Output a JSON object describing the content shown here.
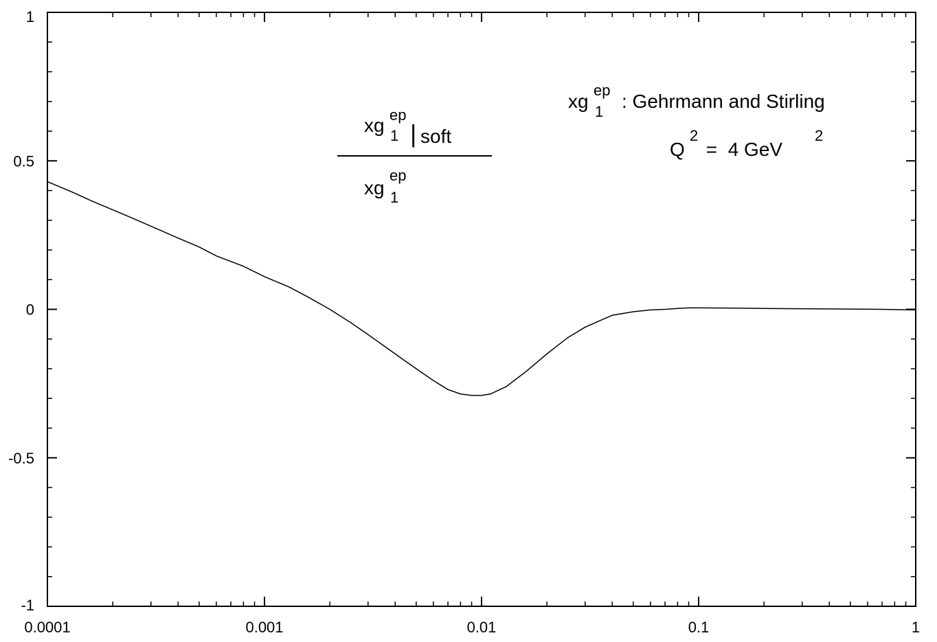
{
  "chart_data": {
    "type": "line",
    "xscale": "log",
    "xlim": [
      0.0001,
      1
    ],
    "ylim": [
      -1,
      1
    ],
    "xticks": [
      {
        "value": 0.0001,
        "label": "0.0001"
      },
      {
        "value": 0.001,
        "label": "0.001"
      },
      {
        "value": 0.01,
        "label": "0.01"
      },
      {
        "value": 0.1,
        "label": "0.1"
      },
      {
        "value": 1,
        "label": "1"
      }
    ],
    "yticks": [
      {
        "value": 1,
        "label": "1"
      },
      {
        "value": 0.5,
        "label": "0.5"
      },
      {
        "value": 0,
        "label": "0"
      },
      {
        "value": -0.5,
        "label": "-0.5"
      },
      {
        "value": -1,
        "label": "-1"
      }
    ],
    "grid": false,
    "series": [
      {
        "color": "#000000",
        "x": [
          0.0001,
          0.00013,
          0.00016,
          0.0002,
          0.00025,
          0.0003,
          0.0004,
          0.0005,
          0.0006,
          0.0008,
          0.001,
          0.0013,
          0.0016,
          0.002,
          0.0025,
          0.003,
          0.004,
          0.005,
          0.006,
          0.007,
          0.008,
          0.009,
          0.01,
          0.011,
          0.013,
          0.016,
          0.02,
          0.025,
          0.03,
          0.04,
          0.05,
          0.06,
          0.07,
          0.08,
          0.09,
          0.1,
          0.15,
          0.2,
          0.3,
          0.5,
          0.7,
          1.0
        ],
        "y": [
          0.43,
          0.395,
          0.365,
          0.335,
          0.305,
          0.28,
          0.24,
          0.21,
          0.18,
          0.145,
          0.11,
          0.075,
          0.04,
          0.0,
          -0.045,
          -0.085,
          -0.15,
          -0.2,
          -0.24,
          -0.27,
          -0.285,
          -0.29,
          -0.29,
          -0.285,
          -0.26,
          -0.21,
          -0.15,
          -0.095,
          -0.06,
          -0.02,
          -0.008,
          -0.002,
          0.0,
          0.003,
          0.005,
          0.005,
          0.004,
          0.003,
          0.002,
          0.001,
          0.0,
          -0.002
        ]
      }
    ],
    "annotations": {
      "ratio_num_main": "xg",
      "ratio_num_sup": "ep",
      "ratio_num_sub": "1",
      "ratio_num_bar": "|",
      "ratio_num_soft": "soft",
      "ratio_den_main": "xg",
      "ratio_den_sup": "ep",
      "ratio_den_sub": "1",
      "source_main": "xg",
      "source_sup": "ep",
      "source_sub": "1",
      "source_text": ": Gehrmann and Stirling",
      "q2_main": "Q",
      "q2_sup": "2",
      "q2_mid": " =  4 GeV",
      "q2_unit_sup": "2"
    }
  }
}
